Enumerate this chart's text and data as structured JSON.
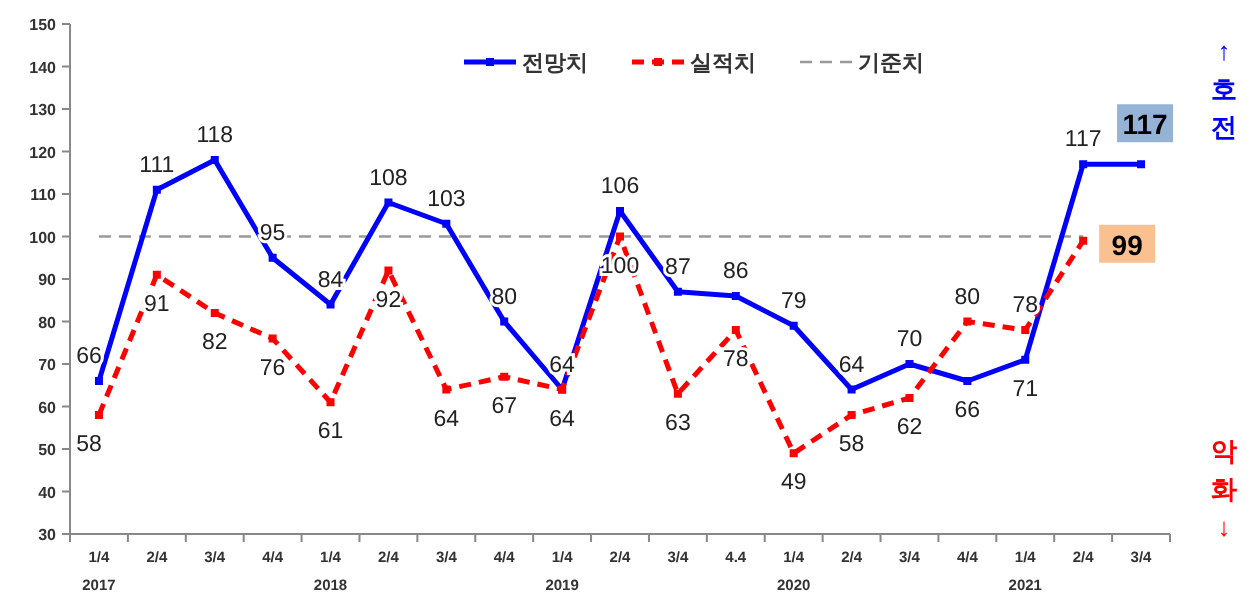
{
  "chart_data": {
    "type": "line",
    "categories": [
      "1/4\n2017",
      "2/4",
      "3/4",
      "4/4",
      "1/4\n2018",
      "2/4",
      "3/4",
      "4/4",
      "1/4\n2019",
      "2/4",
      "3/4",
      "4.4",
      "1/4\n2020",
      "2/4",
      "3/4",
      "4/4",
      "1/4\n2021",
      "2/4",
      "3/4"
    ],
    "series": [
      {
        "name": "전망치",
        "color": "#0000ff",
        "line_style": "solid",
        "values": [
          66,
          111,
          118,
          95,
          84,
          108,
          103,
          80,
          64,
          106,
          87,
          86,
          79,
          64,
          70,
          66,
          71,
          117,
          117
        ]
      },
      {
        "name": "실적치",
        "color": "#ff0000",
        "line_style": "dashed",
        "values": [
          58,
          91,
          82,
          76,
          61,
          92,
          64,
          67,
          64,
          100,
          63,
          78,
          49,
          58,
          62,
          80,
          78,
          99,
          null
        ]
      }
    ],
    "ref_lines": [
      {
        "axis": "y",
        "value": 100,
        "label": "기준치",
        "color": "#999999",
        "line_style": "dashed"
      }
    ],
    "ylim": [
      30,
      150
    ],
    "yticks": [
      30,
      40,
      50,
      60,
      70,
      80,
      90,
      100,
      110,
      120,
      130,
      140,
      150
    ],
    "data_labels": true,
    "marker": "square",
    "grid": false,
    "legend": "top",
    "annotations": [
      "↑\n호\n전",
      "악\n화\n↓"
    ]
  }
}
